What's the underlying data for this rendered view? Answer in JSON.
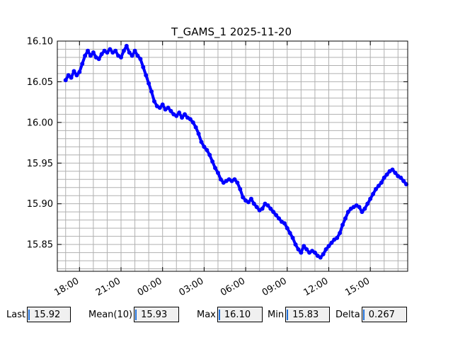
{
  "chart_data": {
    "type": "line",
    "title": "T_GAMS_1 2025-11-20",
    "xlabel": "",
    "ylabel": "",
    "x_unit": "hours",
    "x_ticks": [
      {
        "label": "18:00",
        "hour": 18
      },
      {
        "label": "21:00",
        "hour": 21
      },
      {
        "label": "00:00",
        "hour": 24
      },
      {
        "label": "03:00",
        "hour": 27
      },
      {
        "label": "06:00",
        "hour": 30
      },
      {
        "label": "09:00",
        "hour": 33
      },
      {
        "label": "12:00",
        "hour": 36
      },
      {
        "label": "15:00",
        "hour": 39
      }
    ],
    "xlim": [
      16.4,
      41.7
    ],
    "ylim": [
      15.817,
      16.1
    ],
    "y_ticks": [
      "16.10",
      "16.05",
      "16.00",
      "15.95",
      "15.90",
      "15.85"
    ],
    "y_tick_values": [
      16.1,
      16.05,
      16.0,
      15.95,
      15.9,
      15.85
    ],
    "grid": true,
    "series": [
      {
        "color": "#0000ff",
        "marker": "circle",
        "points": [
          [
            17.0,
            16.052
          ],
          [
            17.2,
            16.058
          ],
          [
            17.4,
            16.055
          ],
          [
            17.6,
            16.063
          ],
          [
            17.8,
            16.058
          ],
          [
            18.0,
            16.062
          ],
          [
            18.2,
            16.072
          ],
          [
            18.4,
            16.082
          ],
          [
            18.6,
            16.088
          ],
          [
            18.8,
            16.082
          ],
          [
            19.0,
            16.086
          ],
          [
            19.2,
            16.08
          ],
          [
            19.4,
            16.078
          ],
          [
            19.6,
            16.084
          ],
          [
            19.8,
            16.088
          ],
          [
            20.0,
            16.086
          ],
          [
            20.2,
            16.09
          ],
          [
            20.4,
            16.086
          ],
          [
            20.6,
            16.088
          ],
          [
            20.8,
            16.082
          ],
          [
            21.0,
            16.08
          ],
          [
            21.2,
            16.088
          ],
          [
            21.4,
            16.094
          ],
          [
            21.6,
            16.086
          ],
          [
            21.8,
            16.082
          ],
          [
            22.0,
            16.088
          ],
          [
            22.2,
            16.082
          ],
          [
            22.4,
            16.078
          ],
          [
            22.6,
            16.068
          ],
          [
            22.8,
            16.058
          ],
          [
            23.0,
            16.048
          ],
          [
            23.2,
            16.038
          ],
          [
            23.4,
            16.026
          ],
          [
            23.6,
            16.02
          ],
          [
            23.8,
            16.018
          ],
          [
            24.0,
            16.022
          ],
          [
            24.2,
            16.016
          ],
          [
            24.4,
            16.018
          ],
          [
            24.6,
            16.014
          ],
          [
            24.8,
            16.01
          ],
          [
            25.0,
            16.008
          ],
          [
            25.2,
            16.012
          ],
          [
            25.4,
            16.006
          ],
          [
            25.6,
            16.01
          ],
          [
            25.8,
            16.006
          ],
          [
            26.0,
            16.004
          ],
          [
            26.2,
            16.0
          ],
          [
            26.4,
            15.994
          ],
          [
            26.6,
            15.986
          ],
          [
            26.8,
            15.976
          ],
          [
            27.0,
            15.97
          ],
          [
            27.2,
            15.966
          ],
          [
            27.4,
            15.96
          ],
          [
            27.6,
            15.952
          ],
          [
            27.8,
            15.944
          ],
          [
            28.0,
            15.938
          ],
          [
            28.2,
            15.93
          ],
          [
            28.4,
            15.926
          ],
          [
            28.6,
            15.928
          ],
          [
            28.8,
            15.93
          ],
          [
            29.0,
            15.928
          ],
          [
            29.2,
            15.93
          ],
          [
            29.4,
            15.926
          ],
          [
            29.6,
            15.918
          ],
          [
            29.8,
            15.908
          ],
          [
            30.0,
            15.904
          ],
          [
            30.2,
            15.902
          ],
          [
            30.4,
            15.906
          ],
          [
            30.6,
            15.9
          ],
          [
            30.8,
            15.896
          ],
          [
            31.0,
            15.892
          ],
          [
            31.2,
            15.894
          ],
          [
            31.4,
            15.9
          ],
          [
            31.6,
            15.898
          ],
          [
            31.8,
            15.894
          ],
          [
            32.0,
            15.89
          ],
          [
            32.2,
            15.886
          ],
          [
            32.4,
            15.882
          ],
          [
            32.6,
            15.878
          ],
          [
            32.8,
            15.876
          ],
          [
            33.0,
            15.87
          ],
          [
            33.2,
            15.864
          ],
          [
            33.4,
            15.858
          ],
          [
            33.6,
            15.85
          ],
          [
            33.8,
            15.844
          ],
          [
            34.0,
            15.84
          ],
          [
            34.2,
            15.848
          ],
          [
            34.4,
            15.844
          ],
          [
            34.6,
            15.84
          ],
          [
            34.8,
            15.842
          ],
          [
            35.0,
            15.84
          ],
          [
            35.2,
            15.836
          ],
          [
            35.4,
            15.834
          ],
          [
            35.6,
            15.838
          ],
          [
            35.8,
            15.844
          ],
          [
            36.0,
            15.848
          ],
          [
            36.2,
            15.852
          ],
          [
            36.4,
            15.856
          ],
          [
            36.6,
            15.858
          ],
          [
            36.8,
            15.864
          ],
          [
            37.0,
            15.874
          ],
          [
            37.2,
            15.882
          ],
          [
            37.4,
            15.89
          ],
          [
            37.6,
            15.894
          ],
          [
            37.8,
            15.896
          ],
          [
            38.0,
            15.898
          ],
          [
            38.2,
            15.896
          ],
          [
            38.4,
            15.89
          ],
          [
            38.6,
            15.894
          ],
          [
            38.8,
            15.9
          ],
          [
            39.0,
            15.906
          ],
          [
            39.2,
            15.912
          ],
          [
            39.4,
            15.918
          ],
          [
            39.6,
            15.922
          ],
          [
            39.8,
            15.926
          ],
          [
            40.0,
            15.932
          ],
          [
            40.2,
            15.936
          ],
          [
            40.4,
            15.94
          ],
          [
            40.6,
            15.942
          ],
          [
            40.8,
            15.938
          ],
          [
            41.0,
            15.934
          ],
          [
            41.2,
            15.932
          ],
          [
            41.4,
            15.928
          ],
          [
            41.6,
            15.924
          ]
        ]
      }
    ]
  },
  "stats": {
    "last_label": "Last",
    "last_value": "15.92",
    "mean_label": "Mean(10)",
    "mean_value": "15.93",
    "max_label": "Max",
    "max_value": "16.10",
    "min_label": "Min",
    "min_value": "15.83",
    "delta_label": "Delta",
    "delta_value": "0.267"
  }
}
